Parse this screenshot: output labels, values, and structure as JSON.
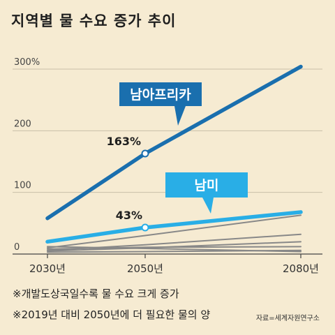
{
  "title": "지역별 물 수요 증가 추이",
  "chart_data": {
    "type": "line",
    "x": [
      2030,
      2050,
      2080
    ],
    "x_tick_labels": [
      "2030년",
      "2050년",
      "2080년"
    ],
    "y_tick_labels": [
      "300%",
      "200",
      "100",
      "0"
    ],
    "ylim": [
      0,
      300
    ],
    "grid": true,
    "series": [
      {
        "name": "남아프리카",
        "values": [
          58,
          163,
          304
        ],
        "color": "#1a6fae",
        "highlight_label": "163%"
      },
      {
        "name": "남미",
        "values": [
          20,
          43,
          68
        ],
        "color": "#29aee6",
        "highlight_label": "43%"
      },
      {
        "values": [
          10,
          30,
          63
        ],
        "color": "#888888"
      },
      {
        "values": [
          6,
          15,
          32
        ],
        "color": "#888888"
      },
      {
        "values": [
          5,
          10,
          20
        ],
        "color": "#888888"
      },
      {
        "values": [
          8,
          11,
          12
        ],
        "color": "#888888"
      },
      {
        "values": [
          12,
          9,
          4
        ],
        "color": "#888888"
      },
      {
        "values": [
          3,
          4,
          6
        ],
        "color": "#888888"
      }
    ]
  },
  "notes": [
    "※개발도상국일수록 물 수요 크게 증가",
    "※2019년 대비 2050년에 더 필요한 물의 양"
  ],
  "source": "자료=세계자원연구소"
}
